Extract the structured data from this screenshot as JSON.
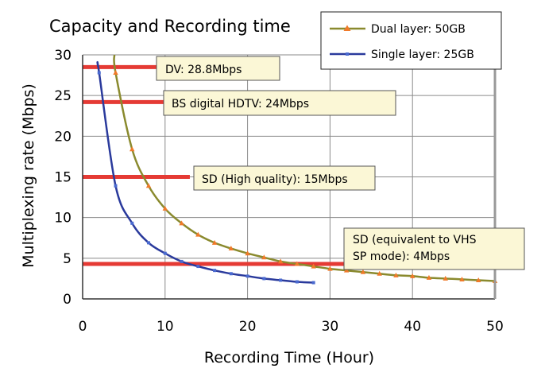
{
  "chart_data": {
    "type": "line",
    "title": "Capacity and Recording time",
    "xlabel": "Recording Time (Hour)",
    "ylabel": "Multiplexing rate (Mbps)",
    "xlim": [
      0,
      50
    ],
    "ylim": [
      0,
      30
    ],
    "x_ticks": [
      "0",
      "10",
      "20",
      "30",
      "40",
      "50"
    ],
    "y_ticks": [
      "0",
      "5",
      "10",
      "15",
      "20",
      "25",
      "30"
    ],
    "grid": true,
    "legend_position": "top-right",
    "series": [
      {
        "name": "Dual layer: 50GB",
        "color": "#8a8a2e",
        "marker_color": "#f07a2a",
        "marker": "triangle",
        "x": [
          4,
          6,
          8,
          10,
          12,
          14,
          16,
          18,
          20,
          22,
          24,
          26,
          28,
          30,
          32,
          34,
          36,
          38,
          40,
          42,
          44,
          46,
          48,
          50
        ],
        "y": [
          27.8,
          18.4,
          13.9,
          11.1,
          9.3,
          7.9,
          6.9,
          6.2,
          5.6,
          5.1,
          4.6,
          4.3,
          4.0,
          3.7,
          3.5,
          3.3,
          3.1,
          2.9,
          2.8,
          2.6,
          2.5,
          2.4,
          2.3,
          2.2
        ]
      },
      {
        "name": "Single layer: 25GB",
        "color": "#2a3a9c",
        "marker_color": "#4a6ad0",
        "marker": "square",
        "x": [
          2,
          4,
          6,
          8,
          10,
          12,
          14,
          16,
          18,
          20,
          22,
          24,
          26,
          28
        ],
        "y": [
          27.8,
          13.9,
          9.3,
          6.9,
          5.6,
          4.6,
          4.0,
          3.5,
          3.1,
          2.8,
          2.5,
          2.3,
          2.1,
          2.0
        ]
      }
    ],
    "reference_lines": [
      {
        "y": 28.5,
        "x_start": 0,
        "x_end": 9,
        "label": "DV: 28.8Mbps"
      },
      {
        "y": 24.2,
        "x_start": 0,
        "x_end": 10,
        "label": "BS digital HDTV: 24Mbps"
      },
      {
        "y": 15.0,
        "x_start": 0,
        "x_end": 13,
        "label": "SD (High quality): 15Mbps"
      },
      {
        "y": 4.3,
        "x_start": 0,
        "x_end": 32,
        "label": "SD (equivalent to VHS SP mode): 4Mbps"
      }
    ],
    "colors": {
      "reference_line": "#e53a34",
      "annotation_fill": "#fbf7d6",
      "annotation_border": "#555555",
      "grid": "#8a8a8a"
    }
  }
}
